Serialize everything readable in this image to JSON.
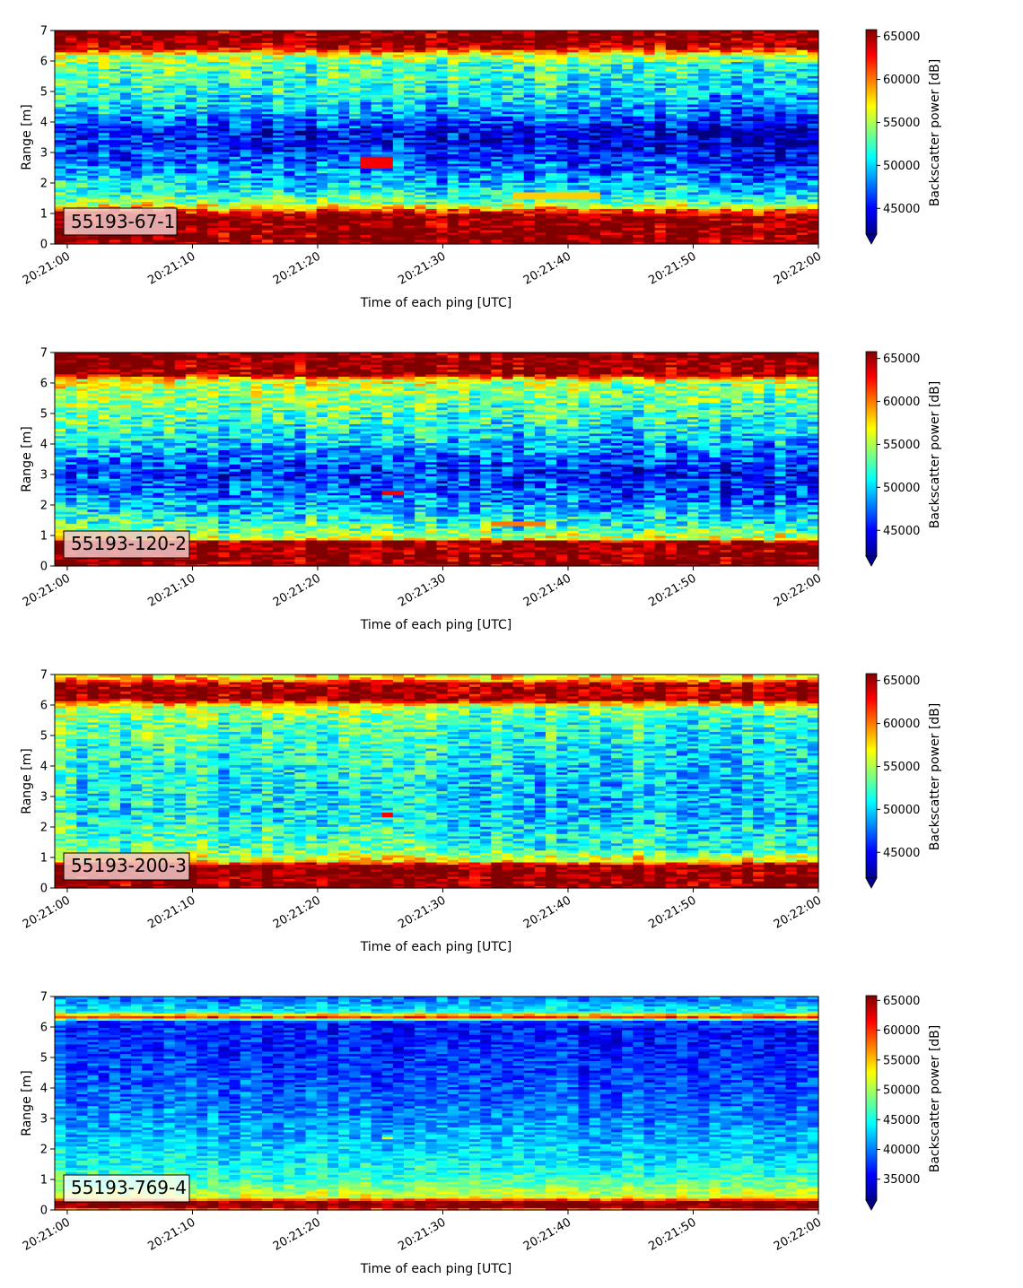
{
  "chart_data": [
    {
      "type": "heatmap",
      "title": "",
      "panel_label": "55193-67-1",
      "xlabel": "Time of each ping [UTC]",
      "ylabel": "Range [m]",
      "x_ticks": [
        "20:21:00",
        "20:21:10",
        "20:21:20",
        "20:21:30",
        "20:21:40",
        "20:21:50",
        "20:22:00"
      ],
      "x_range": [
        "20:20:59",
        "20:22:00"
      ],
      "y_ticks": [
        0,
        1,
        2,
        3,
        4,
        5,
        6,
        7
      ],
      "ylim": [
        0,
        7
      ],
      "colormap": "jet",
      "colorbar": {
        "label": "Backscatter power [dB]",
        "ticks": [
          45000,
          50000,
          55000,
          60000,
          65000
        ],
        "range": [
          42000,
          65800
        ],
        "extend": "min"
      },
      "profile": [
        [
          0.0,
          65800
        ],
        [
          0.3,
          65800
        ],
        [
          0.9,
          65800
        ],
        [
          1.15,
          60000
        ],
        [
          1.35,
          55000
        ],
        [
          1.7,
          52000
        ],
        [
          2.5,
          48500
        ],
        [
          3.3,
          46000
        ],
        [
          3.7,
          45500
        ],
        [
          4.2,
          49000
        ],
        [
          5.0,
          52000
        ],
        [
          5.8,
          53500
        ],
        [
          6.2,
          55000
        ],
        [
          6.4,
          63000
        ],
        [
          6.6,
          65800
        ],
        [
          7.0,
          65800
        ]
      ],
      "noise": 4200,
      "trend": -2200,
      "features": [
        {
          "t0": 24,
          "t1": 27,
          "y0": 2.5,
          "y1": 2.9,
          "value": 63000
        },
        {
          "t0": 37,
          "t1": 44,
          "y0": 1.45,
          "y1": 1.7,
          "value": 58000
        }
      ]
    },
    {
      "type": "heatmap",
      "title": "",
      "panel_label": "55193-120-2",
      "xlabel": "Time of each ping [UTC]",
      "ylabel": "Range [m]",
      "x_ticks": [
        "20:21:00",
        "20:21:10",
        "20:21:20",
        "20:21:30",
        "20:21:40",
        "20:21:50",
        "20:22:00"
      ],
      "x_range": [
        "20:20:59",
        "20:22:00"
      ],
      "y_ticks": [
        0,
        1,
        2,
        3,
        4,
        5,
        6,
        7
      ],
      "ylim": [
        0,
        7
      ],
      "colormap": "jet",
      "colorbar": {
        "label": "Backscatter power [dB]",
        "ticks": [
          45000,
          50000,
          55000,
          60000,
          65000
        ],
        "range": [
          42000,
          65800
        ],
        "extend": "min"
      },
      "profile": [
        [
          0.0,
          65800
        ],
        [
          0.8,
          65800
        ],
        [
          0.9,
          56000
        ],
        [
          1.3,
          53000
        ],
        [
          2.0,
          49500
        ],
        [
          3.0,
          46500
        ],
        [
          3.5,
          48000
        ],
        [
          4.5,
          52000
        ],
        [
          5.5,
          54500
        ],
        [
          6.1,
          56000
        ],
        [
          6.3,
          65800
        ],
        [
          7.0,
          65800
        ]
      ],
      "noise": 4400,
      "trend": -1500,
      "features": [
        {
          "t0": 26,
          "t1": 28,
          "y0": 2.3,
          "y1": 2.5,
          "value": 63000
        },
        {
          "t0": 35,
          "t1": 39,
          "y0": 1.3,
          "y1": 1.45,
          "value": 60000
        }
      ]
    },
    {
      "type": "heatmap",
      "title": "",
      "panel_label": "55193-200-3",
      "xlabel": "Time of each ping [UTC]",
      "ylabel": "Range [m]",
      "x_ticks": [
        "20:21:00",
        "20:21:10",
        "20:21:20",
        "20:21:30",
        "20:21:40",
        "20:21:50",
        "20:22:00"
      ],
      "x_range": [
        "20:20:59",
        "20:22:00"
      ],
      "y_ticks": [
        0,
        1,
        2,
        3,
        4,
        5,
        6,
        7
      ],
      "ylim": [
        0,
        7
      ],
      "colormap": "jet",
      "colorbar": {
        "label": "Backscatter power [dB]",
        "ticks": [
          45000,
          50000,
          55000,
          60000,
          65000
        ],
        "range": [
          42000,
          65800
        ],
        "extend": "min"
      },
      "profile": [
        [
          0.0,
          65800
        ],
        [
          0.75,
          65800
        ],
        [
          0.9,
          57000
        ],
        [
          1.3,
          53500
        ],
        [
          2.5,
          51000
        ],
        [
          4.0,
          51500
        ],
        [
          5.5,
          53500
        ],
        [
          6.0,
          56000
        ],
        [
          6.2,
          65800
        ],
        [
          6.7,
          65000
        ],
        [
          6.85,
          58000
        ],
        [
          7.0,
          58000
        ]
      ],
      "noise": 4000,
      "trend": -1800,
      "features": [
        {
          "t0": 26,
          "t1": 27,
          "y0": 2.3,
          "y1": 2.5,
          "value": 63000
        }
      ]
    },
    {
      "type": "heatmap",
      "title": "",
      "panel_label": "55193-769-4",
      "xlabel": "Time of each ping [UTC]",
      "ylabel": "Range [m]",
      "x_ticks": [
        "20:21:00",
        "20:21:10",
        "20:21:20",
        "20:21:30",
        "20:21:40",
        "20:21:50",
        "20:22:00"
      ],
      "x_range": [
        "20:20:59",
        "20:22:00"
      ],
      "y_ticks": [
        0,
        1,
        2,
        3,
        4,
        5,
        6,
        7
      ],
      "ylim": [
        0,
        7
      ],
      "colormap": "jet",
      "colorbar": {
        "label": "Backscatter power [dB]",
        "ticks": [
          35000,
          40000,
          45000,
          50000,
          55000,
          60000,
          65000
        ],
        "range": [
          31500,
          65800
        ],
        "extend": "min"
      },
      "profile": [
        [
          0.0,
          55000
        ],
        [
          0.1,
          65800
        ],
        [
          0.3,
          65800
        ],
        [
          0.4,
          52000
        ],
        [
          1.0,
          46500
        ],
        [
          2.0,
          43500
        ],
        [
          3.5,
          40000
        ],
        [
          5.0,
          38000
        ],
        [
          6.0,
          37000
        ],
        [
          6.2,
          38000
        ],
        [
          6.35,
          62000
        ],
        [
          6.5,
          45000
        ],
        [
          6.9,
          40000
        ],
        [
          7.0,
          40000
        ]
      ],
      "noise": 3800,
      "trend": -1200,
      "features": [
        {
          "t0": 26,
          "t1": 27,
          "y0": 2.3,
          "y1": 2.4,
          "value": 52000
        }
      ]
    }
  ]
}
